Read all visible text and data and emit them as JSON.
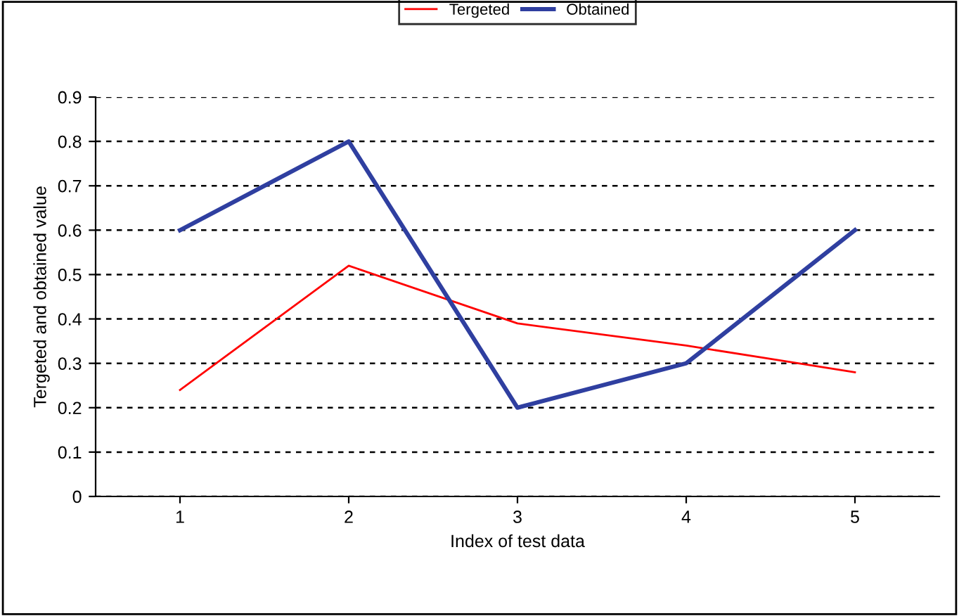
{
  "chart_data": {
    "type": "line",
    "xlabel": "Index of test data",
    "ylabel": "Tergeted and obtained value",
    "categories": [
      "1",
      "2",
      "3",
      "4",
      "5"
    ],
    "series": [
      {
        "name": "Tergeted",
        "color": "#ff0000",
        "values": [
          0.24,
          0.52,
          0.39,
          0.34,
          0.28
        ]
      },
      {
        "name": "Obtained",
        "color": "#2f3fa0",
        "values": [
          0.6,
          0.8,
          0.2,
          0.3,
          0.6
        ]
      }
    ],
    "ylim": [
      0,
      0.9
    ],
    "yticks": [
      0,
      0.1,
      0.2,
      0.3,
      0.4,
      0.5,
      0.6,
      0.7,
      0.8,
      0.9
    ],
    "grid": "y",
    "legend": "top",
    "marker": "none",
    "line_style": "solid"
  }
}
